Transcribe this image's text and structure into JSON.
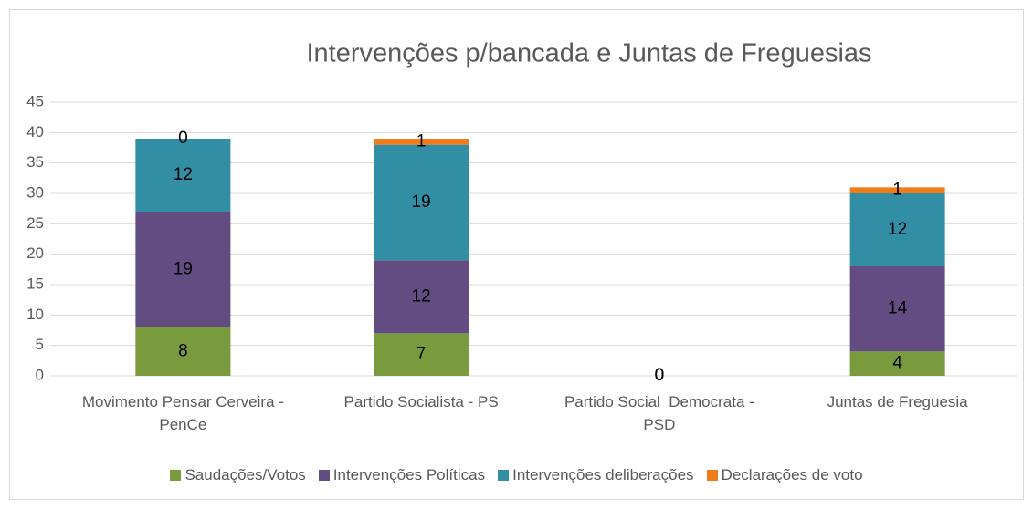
{
  "chart_data": {
    "type": "stacked-bar",
    "title": "Intervenções p/bancada e Juntas de Freguesias",
    "categories": [
      "Movimento Pensar Cerveira - PenCe",
      "Partido Socialista - PS",
      "Partido Social  Democrata - PSD",
      "Juntas de Freguesia"
    ],
    "series": [
      {
        "name": "Saudações/Votos",
        "color": "#7a9a3e",
        "values": [
          8,
          7,
          0,
          4
        ]
      },
      {
        "name": "Intervenções Políticas",
        "color": "#634c82",
        "values": [
          19,
          12,
          0,
          14
        ]
      },
      {
        "name": "Intervenções deliberações",
        "color": "#318ea5",
        "values": [
          12,
          19,
          0,
          12
        ]
      },
      {
        "name": "Declarações de voto",
        "color": "#f07d1a",
        "values": [
          0,
          1,
          0,
          1
        ]
      }
    ],
    "ylim": [
      0,
      45
    ],
    "yticks": [
      0,
      5,
      10,
      15,
      20,
      25,
      30,
      35,
      40,
      45
    ],
    "grid": true,
    "legend": "bottom"
  }
}
